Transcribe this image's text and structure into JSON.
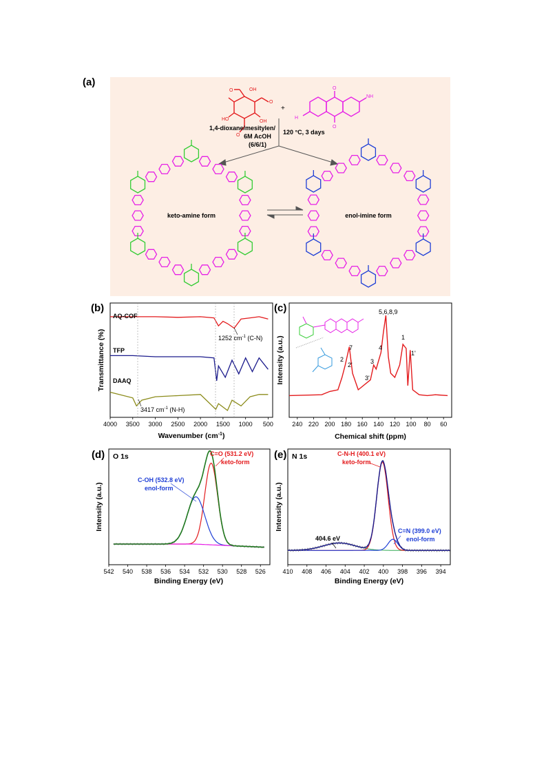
{
  "panels": {
    "a": {
      "label": "(a)",
      "conditions": [
        "1,4-dioxane/mesitylen/",
        "6M AcOH",
        "(6/6/1)"
      ],
      "temp": "120 °C, 3 days",
      "plus": "+",
      "keto_label": "keto-amine form",
      "enol_label": "enol-imine form",
      "aldehyde_labels": [
        "OH",
        "HO",
        "OH",
        "O",
        "O",
        "O"
      ],
      "amine_labels": [
        "O",
        "O",
        "NH",
        "H"
      ]
    },
    "b": {
      "label": "(b)",
      "traces": [
        "AQ-COF",
        "TFP",
        "DAAQ"
      ],
      "ann1": "1252 cm",
      "ann1_sup": "-1",
      "ann1_suffix": " (C-N)",
      "ann2": "3417 cm",
      "ann2_sup": "-1",
      "ann2_suffix": " (N-H)",
      "ylabel": "Transmittance (%)",
      "xlabel": "Wavenumber (cm",
      "xlabel_sup": "-1",
      "xlabel_suffix": ")",
      "xticks": [
        "4000",
        "3500",
        "3000",
        "2500",
        "2000",
        "1500",
        "1000",
        "500"
      ]
    },
    "c": {
      "label": "(c)",
      "ylabel": "Intensity (a.u.)",
      "xlabel": "Chemical shift (ppm)",
      "xticks": [
        "240",
        "220",
        "200",
        "180",
        "160",
        "140",
        "120",
        "100",
        "80",
        "60"
      ],
      "peak_labels": [
        "5,6,8,9",
        "7",
        "2",
        "2'",
        "4",
        "3",
        "3'",
        "1",
        "1'"
      ]
    },
    "d": {
      "label": "(d)",
      "title": "O 1s",
      "peak1": "C=O (531.2 eV)",
      "peak1_form": "keto-form",
      "peak2": "C-OH (532.8 eV)",
      "peak2_form": "enol-form",
      "ylabel": "Intensity (a.u.)",
      "xlabel": "Binding Energy  (eV)",
      "xticks": [
        "542",
        "540",
        "538",
        "536",
        "534",
        "532",
        "530",
        "528",
        "526"
      ]
    },
    "e": {
      "label": "(e)",
      "title": "N 1s",
      "peak1": "C-N-H (400.1 eV)",
      "peak1_form": "keto-form",
      "peak2": "C=N (399.0 eV)",
      "peak2_form": "enol-form",
      "peak3": "404.6 eV",
      "ylabel": "Intensity (a.u.)",
      "xlabel": "Binding Energy  (eV)",
      "xticks": [
        "410",
        "408",
        "406",
        "404",
        "402",
        "400",
        "398",
        "396",
        "394"
      ]
    }
  },
  "colors": {
    "red": "#e31a1c",
    "navy": "#1a1a8c",
    "olive": "#8b8b1a",
    "green": "#1f7a1f",
    "blue": "#1f3fd6",
    "magenta": "#e61fe6",
    "lime": "#33cc33",
    "pink_bg": "#fdeee4"
  },
  "chart_data": [
    {
      "type": "line",
      "panel": "b",
      "series": [
        {
          "name": "AQ-COF",
          "x": [
            4000,
            3500,
            3000,
            2500,
            2000,
            1700,
            1600,
            1500,
            1400,
            1252,
            1100,
            900,
            700,
            500
          ],
          "y": [
            0.88,
            0.88,
            0.88,
            0.875,
            0.88,
            0.87,
            0.8,
            0.84,
            0.82,
            0.78,
            0.86,
            0.87,
            0.88,
            0.86
          ]
        },
        {
          "name": "TFP",
          "x": [
            4000,
            3500,
            3000,
            2500,
            2000,
            1700,
            1640,
            1600,
            1450,
            1300,
            1150,
            1000,
            850,
            700,
            500
          ],
          "y": [
            0.54,
            0.54,
            0.53,
            0.53,
            0.53,
            0.52,
            0.32,
            0.45,
            0.35,
            0.5,
            0.38,
            0.52,
            0.4,
            0.52,
            0.42
          ]
        },
        {
          "name": "DAAQ",
          "x": [
            4000,
            3500,
            3417,
            3300,
            3000,
            2500,
            2000,
            1660,
            1600,
            1400,
            1300,
            1100,
            900,
            700,
            500
          ],
          "y": [
            0.22,
            0.17,
            0.1,
            0.15,
            0.18,
            0.19,
            0.2,
            0.07,
            0.12,
            0.06,
            0.15,
            0.1,
            0.18,
            0.2,
            0.2
          ]
        }
      ],
      "xlim": [
        4000,
        400
      ]
    },
    {
      "type": "line",
      "panel": "c",
      "x": [
        250,
        210,
        200,
        190,
        185,
        181,
        176,
        172,
        165,
        150,
        146,
        143,
        140,
        137,
        134,
        131,
        128,
        125,
        120,
        114,
        110,
        106,
        104,
        101,
        98,
        90,
        80,
        70,
        55
      ],
      "y": [
        0.03,
        0.04,
        0.08,
        0.1,
        0.25,
        0.4,
        0.62,
        0.3,
        0.1,
        0.22,
        0.4,
        0.35,
        0.45,
        0.55,
        0.8,
        1.0,
        0.5,
        0.3,
        0.25,
        0.4,
        0.65,
        0.6,
        0.15,
        0.58,
        0.1,
        0.04,
        0.03,
        0.04,
        0.03
      ],
      "xlim": [
        250,
        50
      ]
    },
    {
      "type": "line",
      "panel": "d",
      "series": [
        {
          "name": "C=O (531.2 eV)",
          "center": 531.2,
          "amplitude": 0.95,
          "fwhm": 1.6
        },
        {
          "name": "C-OH (532.8 eV)",
          "center": 532.8,
          "amplitude": 0.55,
          "fwhm": 2.2
        }
      ],
      "xlim": [
        542,
        525
      ]
    },
    {
      "type": "line",
      "panel": "e",
      "series": [
        {
          "name": "C-N-H (400.1 eV)",
          "center": 400.1,
          "amplitude": 0.95,
          "fwhm": 1.4
        },
        {
          "name": "C=N (399.0 eV)",
          "center": 399.0,
          "amplitude": 0.12,
          "fwhm": 1.2
        },
        {
          "name": "404.6 eV",
          "center": 404.6,
          "amplitude": 0.08,
          "fwhm": 4.0
        }
      ],
      "xlim": [
        410,
        393
      ]
    }
  ]
}
